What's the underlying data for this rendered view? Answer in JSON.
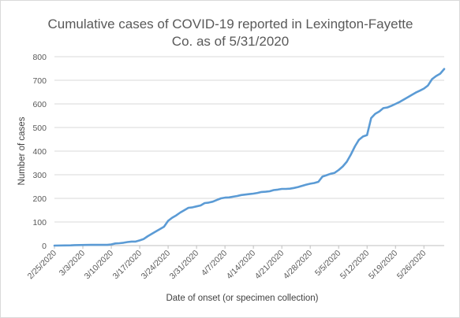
{
  "chart_data": {
    "type": "line",
    "title_lines": [
      "Cumulative cases of COVID-19 reported in Lexington-Fayette",
      "Co.  as of 5/31/2020"
    ],
    "xlabel": "Date of onset (or specimen collection)",
    "ylabel": "Number of cases",
    "ylim": [
      0,
      800
    ],
    "yticks": [
      0,
      100,
      200,
      300,
      400,
      500,
      600,
      700,
      800
    ],
    "x_start": "2/25/2020",
    "x_end": "5/31/2020",
    "xticks": [
      "2/25/2020",
      "3/3/2020",
      "3/10/2020",
      "3/17/2020",
      "3/24/2020",
      "3/31/2020",
      "4/7/2020",
      "4/14/2020",
      "4/21/2020",
      "4/28/2020",
      "5/5/2020",
      "5/12/2020",
      "5/19/2020",
      "5/26/2020"
    ],
    "grid": "horizontal",
    "color": "#5b9bd5",
    "series": [
      {
        "points": [
          [
            "2/25/2020",
            0
          ],
          [
            "2/29/2020",
            1
          ],
          [
            "3/1/2020",
            2
          ],
          [
            "3/5/2020",
            3
          ],
          [
            "3/9/2020",
            3
          ],
          [
            "3/10/2020",
            5
          ],
          [
            "3/11/2020",
            9
          ],
          [
            "3/12/2020",
            10
          ],
          [
            "3/13/2020",
            12
          ],
          [
            "3/14/2020",
            15
          ],
          [
            "3/15/2020",
            17
          ],
          [
            "3/16/2020",
            17
          ],
          [
            "3/17/2020",
            22
          ],
          [
            "3/18/2020",
            28
          ],
          [
            "3/19/2020",
            40
          ],
          [
            "3/20/2020",
            50
          ],
          [
            "3/21/2020",
            60
          ],
          [
            "3/22/2020",
            70
          ],
          [
            "3/23/2020",
            80
          ],
          [
            "3/24/2020",
            105
          ],
          [
            "3/25/2020",
            118
          ],
          [
            "3/26/2020",
            128
          ],
          [
            "3/27/2020",
            140
          ],
          [
            "3/28/2020",
            150
          ],
          [
            "3/29/2020",
            160
          ],
          [
            "3/30/2020",
            162
          ],
          [
            "3/31/2020",
            166
          ],
          [
            "4/1/2020",
            170
          ],
          [
            "4/2/2020",
            180
          ],
          [
            "4/3/2020",
            182
          ],
          [
            "4/4/2020",
            186
          ],
          [
            "4/5/2020",
            193
          ],
          [
            "4/6/2020",
            200
          ],
          [
            "4/7/2020",
            203
          ],
          [
            "4/8/2020",
            204
          ],
          [
            "4/9/2020",
            207
          ],
          [
            "4/10/2020",
            210
          ],
          [
            "4/11/2020",
            214
          ],
          [
            "4/12/2020",
            216
          ],
          [
            "4/13/2020",
            218
          ],
          [
            "4/14/2020",
            220
          ],
          [
            "4/15/2020",
            223
          ],
          [
            "4/16/2020",
            227
          ],
          [
            "4/17/2020",
            228
          ],
          [
            "4/18/2020",
            230
          ],
          [
            "4/19/2020",
            235
          ],
          [
            "4/20/2020",
            237
          ],
          [
            "4/21/2020",
            240
          ],
          [
            "4/22/2020",
            240
          ],
          [
            "4/23/2020",
            241
          ],
          [
            "4/24/2020",
            244
          ],
          [
            "4/25/2020",
            248
          ],
          [
            "4/26/2020",
            253
          ],
          [
            "4/27/2020",
            258
          ],
          [
            "4/28/2020",
            262
          ],
          [
            "4/29/2020",
            265
          ],
          [
            "4/30/2020",
            270
          ],
          [
            "5/1/2020",
            292
          ],
          [
            "5/2/2020",
            298
          ],
          [
            "5/3/2020",
            304
          ],
          [
            "5/4/2020",
            308
          ],
          [
            "5/5/2020",
            320
          ],
          [
            "5/6/2020",
            335
          ],
          [
            "5/7/2020",
            355
          ],
          [
            "5/8/2020",
            385
          ],
          [
            "5/9/2020",
            420
          ],
          [
            "5/10/2020",
            448
          ],
          [
            "5/11/2020",
            462
          ],
          [
            "5/12/2020",
            468
          ],
          [
            "5/13/2020",
            540
          ],
          [
            "5/14/2020",
            558
          ],
          [
            "5/15/2020",
            568
          ],
          [
            "5/16/2020",
            582
          ],
          [
            "5/17/2020",
            585
          ],
          [
            "5/18/2020",
            592
          ],
          [
            "5/19/2020",
            600
          ],
          [
            "5/20/2020",
            608
          ],
          [
            "5/21/2020",
            618
          ],
          [
            "5/22/2020",
            628
          ],
          [
            "5/23/2020",
            638
          ],
          [
            "5/24/2020",
            648
          ],
          [
            "5/25/2020",
            656
          ],
          [
            "5/26/2020",
            665
          ],
          [
            "5/27/2020",
            678
          ],
          [
            "5/28/2020",
            705
          ],
          [
            "5/29/2020",
            718
          ],
          [
            "5/30/2020",
            728
          ],
          [
            "5/31/2020",
            748
          ]
        ]
      }
    ]
  }
}
